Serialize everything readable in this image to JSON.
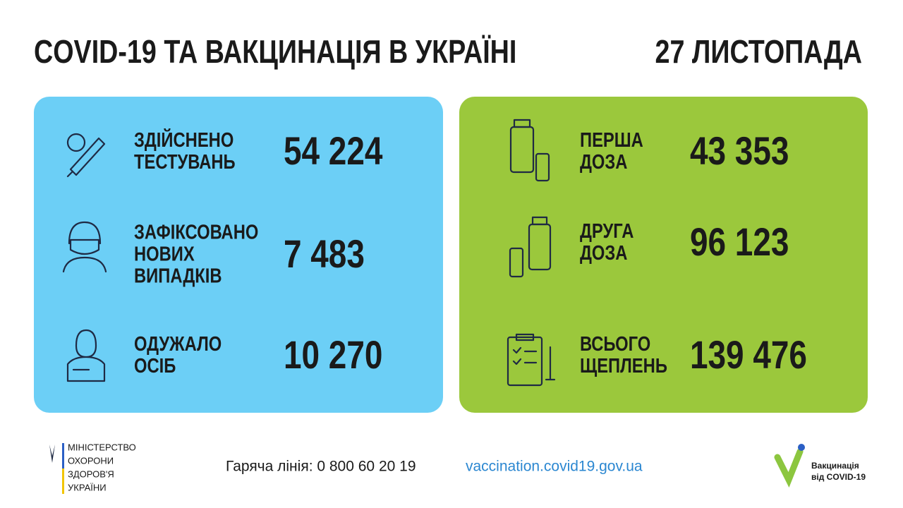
{
  "header": {
    "title": "COVID-19 ТА ВАКЦИНАЦІЯ В УКРАЇНІ",
    "date": "27 ЛИСТОПАДА"
  },
  "left_panel": {
    "items": [
      {
        "label": [
          "ЗДІЙСНЕНО",
          "ТЕСТУВАНЬ"
        ],
        "value": "54 224"
      },
      {
        "label": [
          "ЗАФІКСОВАНО",
          "НОВИХ",
          "ВИПАДКІВ"
        ],
        "value": "7 483"
      },
      {
        "label": [
          "ОДУЖАЛО",
          "ОСІБ"
        ],
        "value": "10 270"
      }
    ]
  },
  "right_panel": {
    "items": [
      {
        "label": [
          "ПЕРША",
          "ДОЗА"
        ],
        "value": "43 353"
      },
      {
        "label": [
          "ДРУГА",
          "ДОЗА"
        ],
        "value": "96 123"
      },
      {
        "label": [
          "ВСЬОГО",
          "ЩЕПЛЕНЬ"
        ],
        "value": "139 476"
      }
    ]
  },
  "footer": {
    "ministry": [
      "МІНІСТЕРСТВО",
      "ОХОРОНИ",
      "ЗДОРОВ'Я",
      "УКРАЇНИ"
    ],
    "hotline": "Гаряча лінія: 0 800 60 20 19",
    "website": "vaccination.covid19.gov.ua",
    "logo": [
      "Вакцинація",
      "від COVID-19"
    ]
  }
}
